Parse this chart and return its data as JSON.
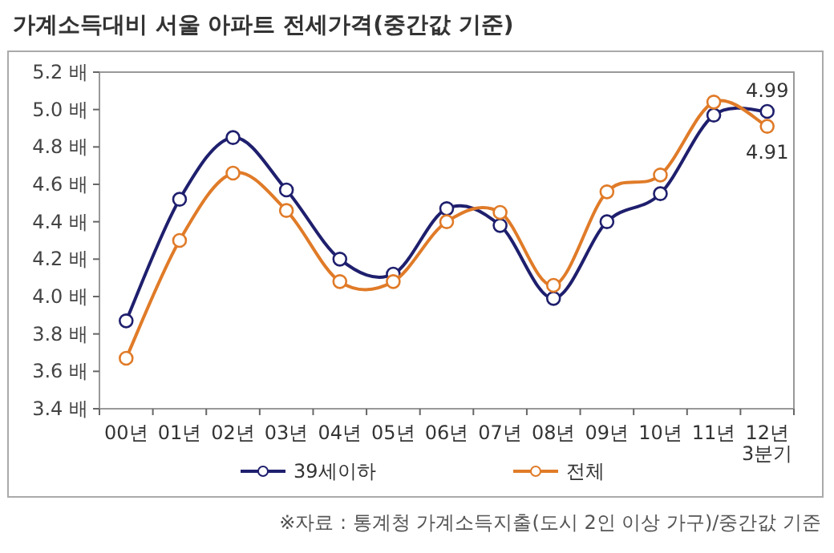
{
  "chart_data": {
    "type": "line",
    "title": "가계소득대비 서울 아파트 전세가격(중간값 기준)",
    "categories": [
      "00년",
      "01년",
      "02년",
      "03년",
      "04년",
      "05년",
      "06년",
      "07년",
      "08년",
      "09년",
      "10년",
      "11년",
      "12년\n3분기"
    ],
    "series": [
      {
        "name": "39세이하",
        "color": "#1f1f6e",
        "values": [
          3.87,
          4.52,
          4.85,
          4.57,
          4.2,
          4.12,
          4.47,
          4.38,
          3.99,
          4.4,
          4.55,
          4.97,
          4.99
        ],
        "value_labels": [
          null,
          null,
          null,
          null,
          null,
          null,
          null,
          null,
          null,
          null,
          null,
          null,
          "4.99"
        ]
      },
      {
        "name": "전체",
        "color": "#e07b28",
        "values": [
          3.67,
          4.3,
          4.66,
          4.46,
          4.08,
          4.08,
          4.4,
          4.45,
          4.06,
          4.56,
          4.65,
          5.04,
          4.91
        ],
        "value_labels": [
          null,
          null,
          null,
          null,
          null,
          null,
          null,
          null,
          null,
          null,
          null,
          null,
          "4.91"
        ]
      }
    ],
    "ylim": [
      3.4,
      5.2
    ],
    "yticks": [
      {
        "value": 3.4,
        "label": "3.4 배"
      },
      {
        "value": 3.6,
        "label": "3.6 배"
      },
      {
        "value": 3.8,
        "label": "3.8 배"
      },
      {
        "value": 4.0,
        "label": "4.0 배"
      },
      {
        "value": 4.2,
        "label": "4.2 배"
      },
      {
        "value": 4.4,
        "label": "4.4 배"
      },
      {
        "value": 4.6,
        "label": "4.6 배"
      },
      {
        "value": 4.8,
        "label": "4.8 배"
      },
      {
        "value": 5.0,
        "label": "5.0 배"
      },
      {
        "value": 5.2,
        "label": "5.2 배"
      }
    ],
    "grid": false,
    "legend": "bottom",
    "marker": "circle",
    "line_style": "solid",
    "annotations": [
      "※자료 : 통계청 가계소득지출(도시 2인 이상 가구)/중간값 기준"
    ]
  }
}
